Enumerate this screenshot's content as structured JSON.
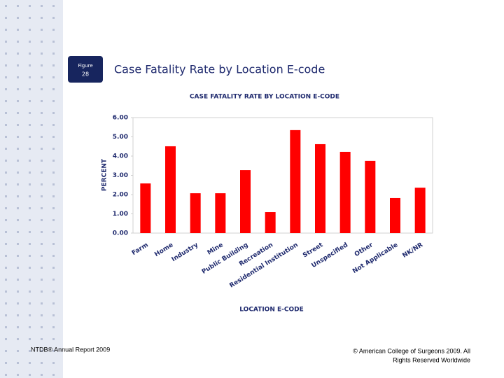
{
  "slide": {
    "figure_label": "Figure",
    "figure_number": "28",
    "title": "Case Fatality Rate by Location E-code",
    "footer_left": "NTDB® Annual Report 2009",
    "footer_right": [
      "© American College of Surgeons 2009.  All",
      "Rights Reserved Worldwide"
    ]
  },
  "chart_data": {
    "type": "bar",
    "title": "CASE FATALITY RATE BY LOCATION E-CODE",
    "categories": [
      "Farm",
      "Home",
      "Industry",
      "Mine",
      "Public Building",
      "Recreation",
      "Residential Institution",
      "Street",
      "Unspecified",
      "Other",
      "Not Applicable",
      "NK/NR"
    ],
    "values": [
      2.58,
      4.51,
      2.07,
      2.07,
      3.27,
      1.09,
      5.35,
      4.62,
      4.22,
      3.75,
      1.82,
      2.36
    ],
    "color": "#ff0000",
    "ylim": [
      0,
      6
    ],
    "yticks": [
      {
        "value": 0,
        "label": "0.00"
      },
      {
        "value": 1,
        "label": "1.00"
      },
      {
        "value": 2,
        "label": "2.00"
      },
      {
        "value": 3,
        "label": "3.00"
      },
      {
        "value": 4,
        "label": "4.00"
      },
      {
        "value": 5,
        "label": "5.00"
      },
      {
        "value": 6,
        "label": "6.00"
      }
    ],
    "y_label": "PERCENT",
    "x_label": "LOCATION E-CODE",
    "grid": false
  }
}
